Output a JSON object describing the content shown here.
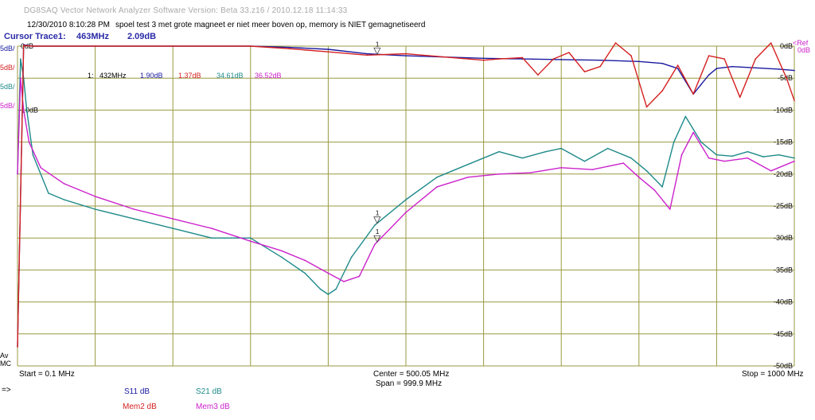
{
  "window": {
    "title": "DG8SAQ Vector Network Analyzer Software   Version:  Beta 33.z16 / 2010.12.18 11:14:33"
  },
  "meta": {
    "date": "12/30/2010   8:10:28 PM",
    "note": "spoel test 3 met grote magneet er niet meer boven op, memory is NIET gemagnetiseerd"
  },
  "cursor": {
    "label": "Cursor Trace1:",
    "freq": "463MHz",
    "value": "2.09dB"
  },
  "readout": {
    "index": "1:",
    "freq": "432MHz",
    "s11": "1.90dB",
    "mem2": "1.37dB",
    "s21": "34.61dB",
    "mem3": "36.52dB"
  },
  "status": {
    "line1": "Av",
    "line2": "MC"
  },
  "xaxis": {
    "start": "Start = 0.1 MHz",
    "center": "Center = 500.05 MHz",
    "span": "Span = 999.9 MHz",
    "stop": "Stop = 1000 MHz"
  },
  "left_edge_labels": [
    "5dB/",
    "5dB/",
    "5dB/",
    "5dB/"
  ],
  "arrow": "=>",
  "legend": {
    "s11": "S11    dB",
    "s21": "S21    dB",
    "mem2": "Mem2  dB",
    "mem3": "Mem3  dB"
  },
  "colors": {
    "s11": "#1a1aa0",
    "s21": "#1f8a8a",
    "mem2": "#d42020",
    "mem3": "#cc22cc",
    "grid": "#9a9a40",
    "ref": "#cc22cc"
  },
  "chart_data": {
    "type": "line",
    "xlabel": "",
    "ylabel": "",
    "xlim": [
      0.1,
      1000
    ],
    "ylim": [
      -50,
      0
    ],
    "ytick_labels": [
      "0dB",
      "-5dB",
      "-10dB",
      "-15dB",
      "-20dB",
      "-25dB",
      "-30dB",
      "-35dB",
      "-40dB",
      "-45dB",
      "-50dB"
    ],
    "ytick_values": [
      0,
      -5,
      -10,
      -15,
      -20,
      -25,
      -30,
      -35,
      -40,
      -45,
      -50
    ],
    "ref_label": "<Ref",
    "ref_value": "0dB",
    "grid": true,
    "marker": {
      "label": "1",
      "x": 463
    },
    "series": [
      {
        "key": "s11",
        "name": "S11",
        "x": [
          0.1,
          8,
          20,
          100,
          200,
          300,
          350,
          400,
          450,
          500,
          550,
          600,
          650,
          700,
          750,
          800,
          830,
          850,
          870,
          880,
          890,
          900,
          920,
          950,
          980,
          1000
        ],
        "y": [
          -47,
          0.2,
          0,
          0,
          0,
          0,
          -0.2,
          -0.5,
          -1.2,
          -1.5,
          -1.7,
          -1.9,
          -2.0,
          -2.1,
          -2.2,
          -2.4,
          -2.7,
          -3.5,
          -7.5,
          -6.0,
          -4.5,
          -3.5,
          -3.2,
          -3.4,
          -3.6,
          -3.8
        ]
      },
      {
        "key": "mem2",
        "name": "Mem2",
        "x": [
          0.1,
          8,
          20,
          100,
          200,
          300,
          350,
          400,
          450,
          500,
          550,
          600,
          620,
          650,
          670,
          690,
          710,
          730,
          750,
          770,
          790,
          810,
          830,
          850,
          870,
          890,
          910,
          930,
          950,
          970,
          990,
          1000
        ],
        "y": [
          -47,
          0.1,
          0,
          0,
          0,
          0,
          -0.4,
          -0.9,
          -1.4,
          -1.2,
          -1.7,
          -2.2,
          -2.0,
          -1.8,
          -4.5,
          -2.0,
          -1.0,
          -4.0,
          -3.2,
          0.5,
          -1.5,
          -9.5,
          -7.0,
          -3.0,
          -7.5,
          -1.5,
          -2.0,
          -8.0,
          -2.0,
          0.5,
          -5.0,
          -8.5
        ]
      },
      {
        "key": "s21",
        "name": "S21",
        "x": [
          0.1,
          4,
          8,
          12,
          20,
          40,
          60,
          100,
          150,
          200,
          250,
          300,
          340,
          370,
          390,
          400,
          410,
          430,
          460,
          500,
          540,
          580,
          620,
          650,
          680,
          700,
          730,
          760,
          790,
          810,
          830,
          845,
          860,
          880,
          900,
          920,
          940,
          960,
          980,
          1000
        ],
        "y": [
          -20,
          -2,
          -5,
          -10,
          -17,
          -23,
          -24,
          -25.5,
          -27,
          -28.5,
          -30,
          -30,
          -33,
          -35.5,
          -38,
          -38.8,
          -38,
          -33,
          -28,
          -24,
          -20.5,
          -18.5,
          -16.5,
          -17.5,
          -16.5,
          -16,
          -18,
          -16,
          -17.5,
          -19.5,
          -22,
          -15,
          -11,
          -15,
          -17,
          -17.2,
          -16.5,
          -17.3,
          -17,
          -17.5
        ]
      },
      {
        "key": "mem3",
        "name": "Mem3",
        "x": [
          0.1,
          4,
          8,
          15,
          30,
          60,
          100,
          150,
          200,
          250,
          300,
          340,
          370,
          400,
          420,
          440,
          460,
          500,
          540,
          580,
          620,
          660,
          700,
          740,
          780,
          800,
          820,
          840,
          855,
          870,
          890,
          910,
          940,
          970,
          1000
        ],
        "y": [
          -20,
          -5,
          -10,
          -15,
          -19,
          -21.5,
          -23.5,
          -25.5,
          -27,
          -28.5,
          -30.5,
          -32,
          -33.5,
          -35.5,
          -36.8,
          -36,
          -31,
          -26,
          -22,
          -20.5,
          -20,
          -19.8,
          -19,
          -19.3,
          -18.3,
          -20.5,
          -22.5,
          -25.5,
          -17,
          -13.5,
          -17.5,
          -18,
          -17.5,
          -19.5,
          -18
        ]
      }
    ]
  }
}
